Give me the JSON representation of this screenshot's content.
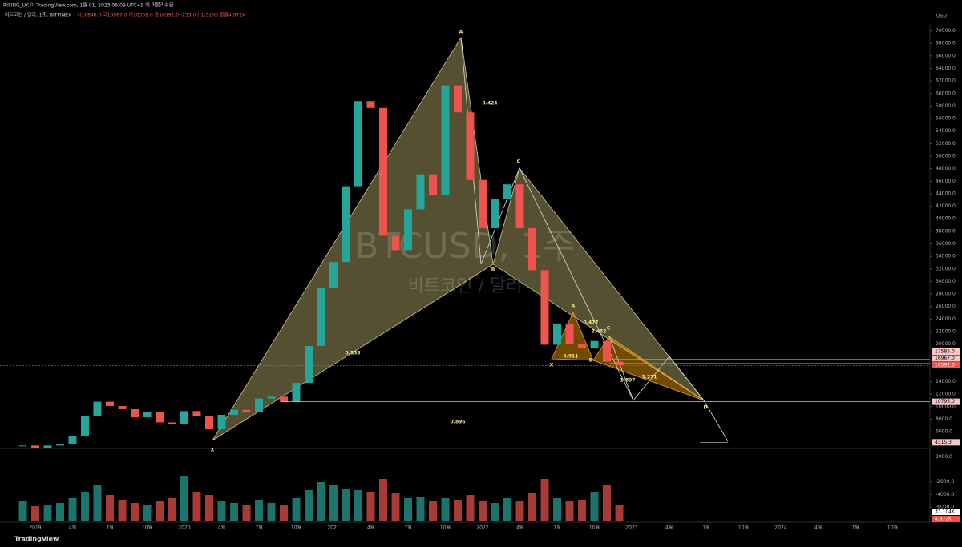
{
  "header": {
    "publisher": "RISING_UK 이 TradingView.com, 1월 01, 2023 06:09 UTC+9 에 퍼블리쉬됨",
    "symbol": "비트코인 / 달러, 1주, BITFINEX",
    "ohlc": "시16848.0 고16987.0 저16358.0 종16592.0 -255.0 (-1.51%) 볼륨4.972K"
  },
  "watermark": {
    "symbol": "BTCUSD, 1주",
    "name": "비트코인 / 달러"
  },
  "footer": "TradingView",
  "chart_data": {
    "type": "candlestick",
    "currency": "USD",
    "categories": [
      "2019",
      "4월",
      "7월",
      "10월",
      "2020",
      "4월",
      "7월",
      "10월",
      "2021",
      "4월",
      "7월",
      "10월",
      "2022",
      "4월",
      "7월",
      "10월",
      "2023",
      "4월",
      "7월",
      "10월",
      "2024",
      "4월",
      "7월",
      "10월"
    ],
    "closes": [
      3800,
      3400,
      3800,
      4100,
      5300,
      8500,
      10800,
      10100,
      9600,
      8300,
      9200,
      7500,
      7200,
      9300,
      8500,
      6400,
      8700,
      9500,
      9100,
      11300,
      11600,
      10800,
      13800,
      19700,
      29000,
      33100,
      45200,
      58800,
      57700,
      37300,
      35000,
      41500,
      47100,
      43800,
      61300,
      57000,
      46200,
      38500,
      43200,
      45500,
      38500,
      31800,
      19900,
      23300,
      20000,
      19400,
      20500,
      17200,
      16600
    ],
    "volumes": [
      60,
      45,
      50,
      55,
      70,
      90,
      110,
      80,
      65,
      55,
      50,
      60,
      70,
      140,
      90,
      80,
      60,
      55,
      50,
      65,
      55,
      50,
      70,
      95,
      120,
      110,
      100,
      95,
      90,
      130,
      85,
      70,
      75,
      60,
      70,
      65,
      80,
      60,
      55,
      70,
      60,
      85,
      130,
      70,
      60,
      65,
      90,
      110,
      50
    ],
    "vlim": [
      0,
      200
    ],
    "up_color": "#26a69a",
    "down_color": "#ef5350",
    "ylim": [
      -6000,
      70000
    ],
    "yticks": [
      {
        "value": 70000,
        "label": "70000.0"
      },
      {
        "value": 68000,
        "label": "68000.0"
      },
      {
        "value": 66000,
        "label": "66000.0"
      },
      {
        "value": 64000,
        "label": "64000.0"
      },
      {
        "value": 62000,
        "label": "62000.0"
      },
      {
        "value": 60000,
        "label": "60000.0"
      },
      {
        "value": 58000,
        "label": "58000.0"
      },
      {
        "value": 56000,
        "label": "56000.0"
      },
      {
        "value": 54000,
        "label": "54000.0"
      },
      {
        "value": 52000,
        "label": "52000.0"
      },
      {
        "value": 50000,
        "label": "50000.0"
      },
      {
        "value": 48000,
        "label": "48000.0"
      },
      {
        "value": 46000,
        "label": "46000.0"
      },
      {
        "value": 44000,
        "label": "44000.0"
      },
      {
        "value": 42000,
        "label": "42000.0"
      },
      {
        "value": 40000,
        "label": "40000.0"
      },
      {
        "value": 38000,
        "label": "38000.0"
      },
      {
        "value": 36000,
        "label": "36000.0"
      },
      {
        "value": 34000,
        "label": "34000.0"
      },
      {
        "value": 32000,
        "label": "32000.0"
      },
      {
        "value": 30000,
        "label": "30000.0"
      },
      {
        "value": 28000,
        "label": "28000.0"
      },
      {
        "value": 26000,
        "label": "26000.0"
      },
      {
        "value": 24000,
        "label": "24000.0"
      },
      {
        "value": 22000,
        "label": "22000.0"
      },
      {
        "value": 20000,
        "label": "20000.0"
      },
      {
        "value": 14000,
        "label": "14000.0"
      },
      {
        "value": 12000,
        "label": "12000.0"
      },
      {
        "value": 10000,
        "label": "10000.0"
      },
      {
        "value": 8000,
        "label": "8000.0"
      },
      {
        "value": 6000,
        "label": "6000.0"
      },
      {
        "value": 2000,
        "label": "2000.0"
      },
      {
        "value": -2000,
        "label": "-2000.0"
      },
      {
        "value": -4000,
        "label": "-4000.0"
      },
      {
        "value": -6000,
        "label": "-6000.0"
      }
    ],
    "price_tags": [
      {
        "value": 17585,
        "label": "17585.0"
      },
      {
        "value": 16967,
        "label": "16967.0"
      },
      {
        "value": 16592,
        "label": "16592.0"
      }
    ],
    "level_tags": [
      {
        "value": 10795,
        "label": "10795.0"
      },
      {
        "value": 4315.3,
        "label": "4315.3"
      }
    ],
    "volume_tags": [
      "33.104K",
      "4.972K"
    ],
    "pattern_labels": [
      "A",
      "0.424",
      "C",
      "B",
      "0.555",
      "X",
      "0.896",
      "A",
      "0.477",
      "2.452",
      "C",
      "X",
      "0.911",
      "B",
      "1.897",
      "3.271",
      "D"
    ]
  }
}
